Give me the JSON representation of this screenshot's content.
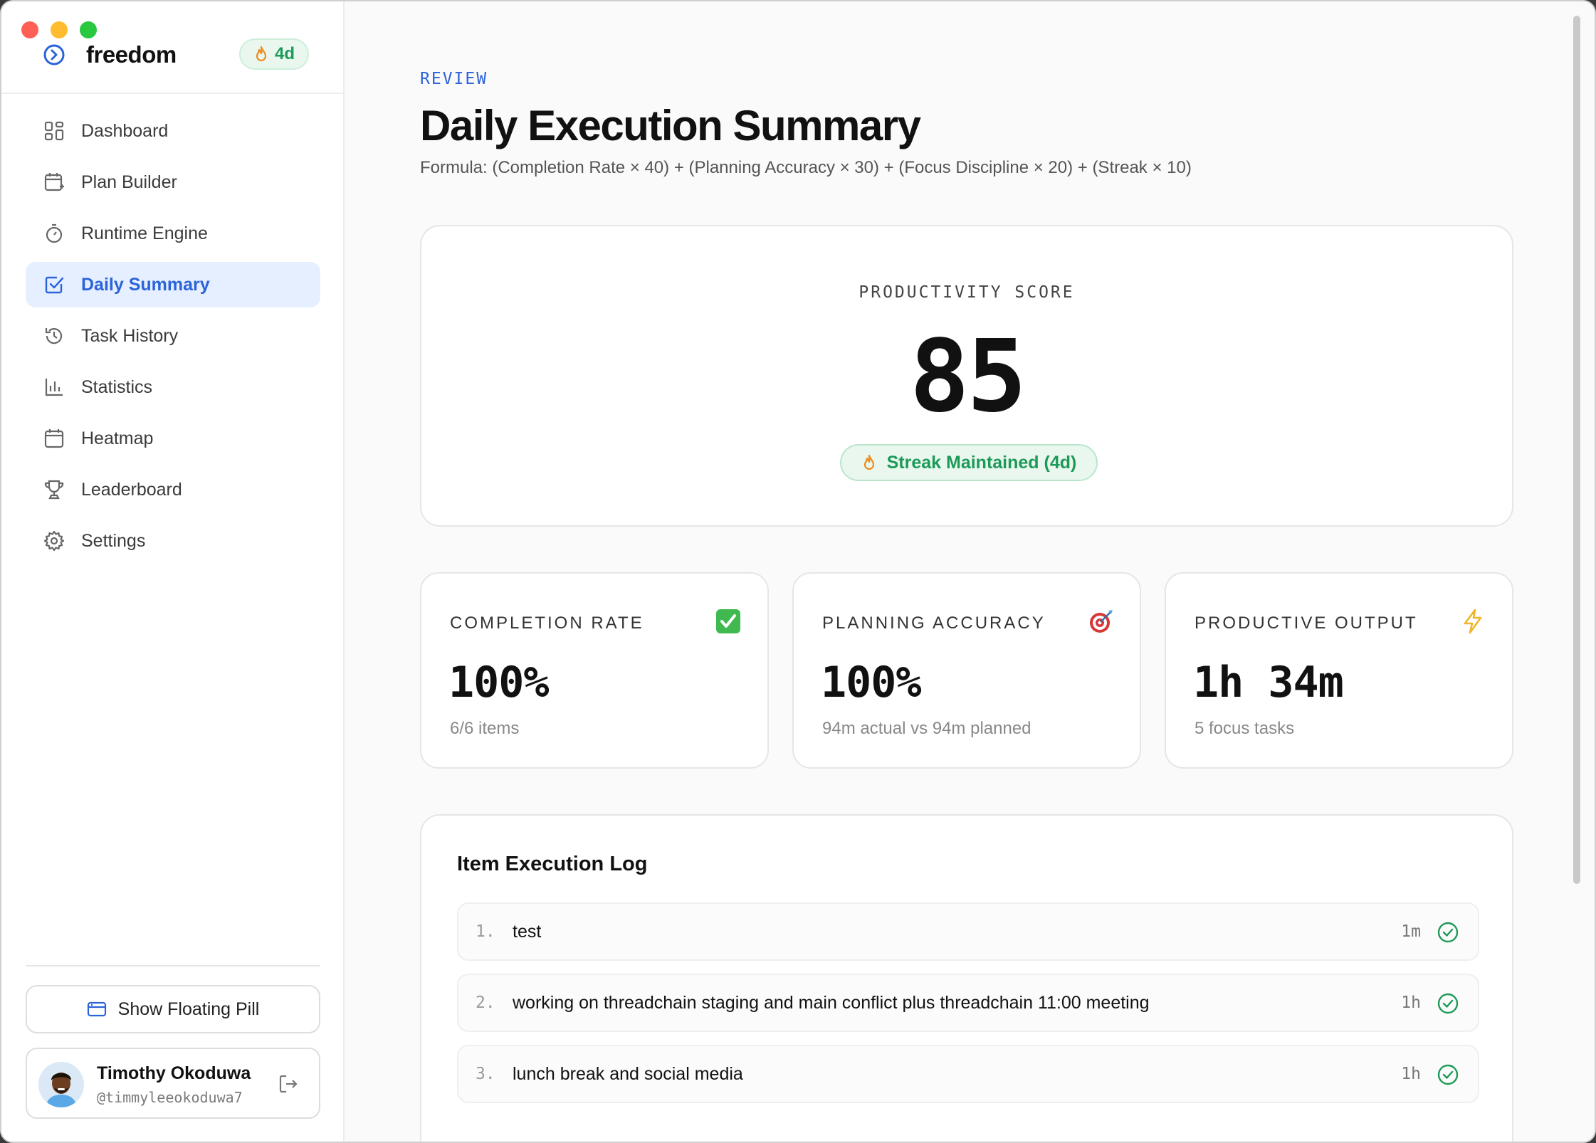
{
  "app": {
    "name": "freedom",
    "streak_chip": "4d"
  },
  "sidebar": {
    "items": [
      {
        "label": "Dashboard",
        "icon": "dashboard-icon"
      },
      {
        "label": "Plan Builder",
        "icon": "calendar-plus-icon"
      },
      {
        "label": "Runtime Engine",
        "icon": "timer-icon"
      },
      {
        "label": "Daily Summary",
        "icon": "checkbox-icon",
        "active": true
      },
      {
        "label": "Task History",
        "icon": "history-icon"
      },
      {
        "label": "Statistics",
        "icon": "bar-chart-icon"
      },
      {
        "label": "Heatmap",
        "icon": "calendar-icon"
      },
      {
        "label": "Leaderboard",
        "icon": "trophy-icon"
      },
      {
        "label": "Settings",
        "icon": "gear-icon"
      }
    ],
    "floating_pill_label": "Show Floating Pill",
    "user": {
      "name": "Timothy Okoduwa",
      "handle": "@timmyleeokoduwa7"
    }
  },
  "main": {
    "kicker": "REVIEW",
    "title": "Daily Execution Summary",
    "formula": "Formula: (Completion Rate × 40) + (Planning Accuracy × 30) + (Focus Discipline × 20) + (Streak × 10)",
    "score": {
      "label": "PRODUCTIVITY SCORE",
      "value": "85",
      "streak_text": "Streak Maintained (4d)"
    },
    "stats": [
      {
        "label": "COMPLETION RATE",
        "value": "100%",
        "sub": "6/6 items",
        "icon": "check-box-icon"
      },
      {
        "label": "PLANNING ACCURACY",
        "value": "100%",
        "sub": "94m actual vs 94m planned",
        "icon": "target-icon"
      },
      {
        "label": "PRODUCTIVE OUTPUT",
        "value": "1h 34m",
        "sub": "5 focus tasks",
        "icon": "lightning-icon"
      }
    ],
    "log": {
      "title": "Item Execution Log",
      "items": [
        {
          "num": "1.",
          "text": "test",
          "duration": "1m"
        },
        {
          "num": "2.",
          "text": "working on threadchain staging and main conflict plus threadchain 11:00 meeting",
          "duration": "1h"
        },
        {
          "num": "3.",
          "text": "lunch break and social media",
          "duration": "1h"
        }
      ]
    }
  },
  "colors": {
    "accent": "#2b63d9",
    "success": "#1d9a57",
    "active_bg": "#e6efff"
  }
}
